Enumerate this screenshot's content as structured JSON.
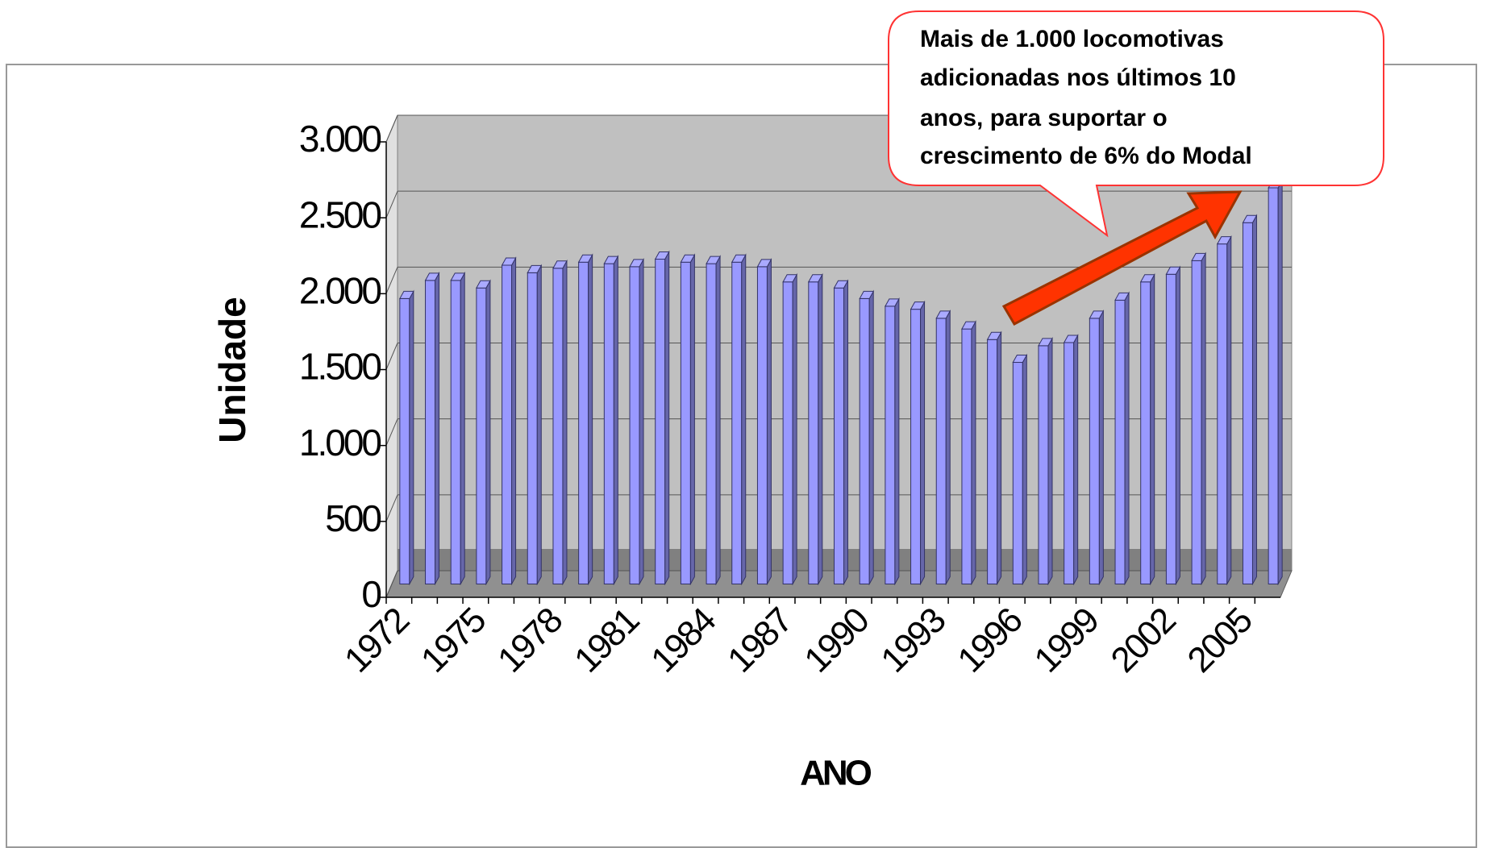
{
  "chart_data": {
    "type": "bar3d",
    "annotation": [
      "Mais de 1.000 locomotivas",
      "adicionadas nos últimos 10",
      "anos, para suportar o",
      "crescimento de 6% do Modal"
    ],
    "xlabel": "ANO",
    "ylabel": "Unidade",
    "categories": [
      "1972",
      null,
      null,
      "1975",
      null,
      null,
      "1978",
      null,
      null,
      "1981",
      null,
      null,
      "1984",
      null,
      null,
      "1987",
      null,
      null,
      "1990",
      null,
      null,
      "1993",
      null,
      null,
      "1996",
      null,
      null,
      "1999",
      null,
      null,
      "2002",
      null,
      null,
      "2005",
      null
    ],
    "values": [
      1880,
      2000,
      2000,
      1950,
      2100,
      2050,
      2080,
      2120,
      2110,
      2090,
      2140,
      2120,
      2110,
      2120,
      2090,
      1990,
      1990,
      1950,
      1880,
      1830,
      1810,
      1750,
      1680,
      1610,
      1460,
      1570,
      1590,
      1750,
      1870,
      1990,
      2040,
      2130,
      2240,
      2380,
      2610
    ],
    "color": "#9999ff",
    "ylim": [
      0,
      3000
    ],
    "yticks": [
      0,
      500,
      {
        "value": 1000,
        "label": "1.000"
      },
      {
        "value": 1500,
        "label": "1.500"
      },
      {
        "value": 2000,
        "label": "2.000"
      },
      {
        "value": 2500,
        "label": "2.500"
      },
      {
        "value": 3000,
        "label": "3.000"
      }
    ],
    "grid": true
  }
}
